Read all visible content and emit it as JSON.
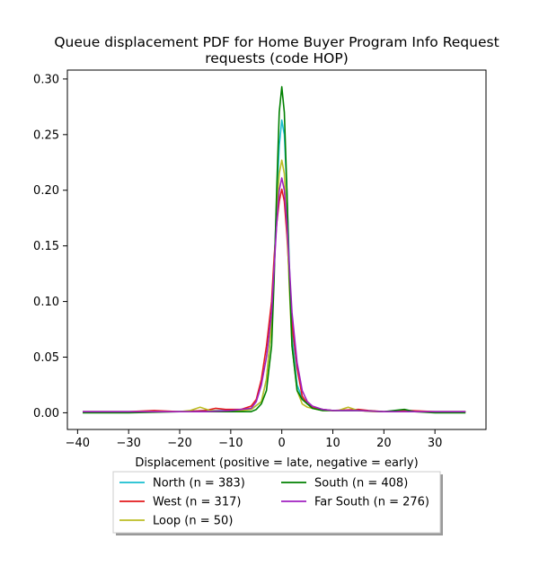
{
  "chart_data": {
    "type": "line",
    "title_lines": [
      "Queue displacement PDF for Home Buyer Program Info Request",
      "requests (code HOP)"
    ],
    "xlabel": "Displacement (positive = late, negative = early)",
    "ylabel": "",
    "xlim": [
      -42,
      40
    ],
    "ylim": [
      -0.015,
      0.308
    ],
    "xticks": [
      -40,
      -30,
      -20,
      -10,
      0,
      10,
      20,
      30
    ],
    "yticks": [
      0.0,
      0.05,
      0.1,
      0.15,
      0.2,
      0.25,
      0.3
    ],
    "ytick_labels": [
      "0.00",
      "0.05",
      "0.10",
      "0.15",
      "0.20",
      "0.25",
      "0.30"
    ],
    "grid": false,
    "legend_position": "below-center",
    "series": [
      {
        "name": "North (n = 383)",
        "color": "#17becf",
        "points": [
          [
            -39,
            0.001
          ],
          [
            -30,
            0.001
          ],
          [
            -20,
            0.001
          ],
          [
            -15,
            0.002
          ],
          [
            -10,
            0.002
          ],
          [
            -6,
            0.003
          ],
          [
            -4,
            0.01
          ],
          [
            -3,
            0.03
          ],
          [
            -2,
            0.08
          ],
          [
            -1.5,
            0.13
          ],
          [
            -1,
            0.19
          ],
          [
            -0.5,
            0.24
          ],
          [
            0,
            0.263
          ],
          [
            0.5,
            0.25
          ],
          [
            1,
            0.2
          ],
          [
            1.5,
            0.13
          ],
          [
            2,
            0.07
          ],
          [
            3,
            0.025
          ],
          [
            4,
            0.013
          ],
          [
            5,
            0.008
          ],
          [
            6,
            0.005
          ],
          [
            8,
            0.003
          ],
          [
            10,
            0.002
          ],
          [
            15,
            0.002
          ],
          [
            20,
            0.001
          ],
          [
            25,
            0.001
          ],
          [
            30,
            0.001
          ],
          [
            36,
            0.001
          ]
        ]
      },
      {
        "name": "West (n = 317)",
        "color": "#e31a1c",
        "points": [
          [
            -39,
            0.001
          ],
          [
            -30,
            0.001
          ],
          [
            -25,
            0.002
          ],
          [
            -20,
            0.001
          ],
          [
            -15,
            0.002
          ],
          [
            -13,
            0.004
          ],
          [
            -11,
            0.003
          ],
          [
            -8,
            0.003
          ],
          [
            -6,
            0.006
          ],
          [
            -5,
            0.012
          ],
          [
            -4,
            0.03
          ],
          [
            -3,
            0.06
          ],
          [
            -2,
            0.1
          ],
          [
            -1.5,
            0.14
          ],
          [
            -1,
            0.17
          ],
          [
            -0.5,
            0.19
          ],
          [
            0,
            0.201
          ],
          [
            0.5,
            0.19
          ],
          [
            1,
            0.16
          ],
          [
            1.5,
            0.12
          ],
          [
            2,
            0.08
          ],
          [
            3,
            0.04
          ],
          [
            4,
            0.015
          ],
          [
            5,
            0.008
          ],
          [
            6,
            0.005
          ],
          [
            8,
            0.003
          ],
          [
            10,
            0.002
          ],
          [
            15,
            0.003
          ],
          [
            17,
            0.002
          ],
          [
            20,
            0.001
          ],
          [
            25,
            0.002
          ],
          [
            30,
            0.001
          ],
          [
            36,
            0.001
          ]
        ]
      },
      {
        "name": "Loop (n = 50)",
        "color": "#bcbd22",
        "points": [
          [
            -39,
            0.001
          ],
          [
            -30,
            0.001
          ],
          [
            -20,
            0.001
          ],
          [
            -18,
            0.002
          ],
          [
            -16,
            0.005
          ],
          [
            -14,
            0.002
          ],
          [
            -10,
            0.001
          ],
          [
            -6,
            0.003
          ],
          [
            -4,
            0.01
          ],
          [
            -3,
            0.03
          ],
          [
            -2,
            0.08
          ],
          [
            -1.5,
            0.13
          ],
          [
            -1,
            0.18
          ],
          [
            -0.5,
            0.215
          ],
          [
            0,
            0.227
          ],
          [
            0.5,
            0.215
          ],
          [
            1,
            0.17
          ],
          [
            1.5,
            0.11
          ],
          [
            2,
            0.06
          ],
          [
            3,
            0.02
          ],
          [
            4,
            0.008
          ],
          [
            5,
            0.005
          ],
          [
            8,
            0.002
          ],
          [
            11,
            0.002
          ],
          [
            13,
            0.005
          ],
          [
            15,
            0.002
          ],
          [
            18,
            0.001
          ],
          [
            25,
            0.001
          ],
          [
            30,
            0.001
          ],
          [
            36,
            0.001
          ]
        ]
      },
      {
        "name": "South (n = 408)",
        "color": "#008000",
        "points": [
          [
            -39,
            0.0
          ],
          [
            -30,
            0.0
          ],
          [
            -20,
            0.001
          ],
          [
            -15,
            0.001
          ],
          [
            -10,
            0.001
          ],
          [
            -6,
            0.001
          ],
          [
            -5,
            0.003
          ],
          [
            -4,
            0.008
          ],
          [
            -3,
            0.02
          ],
          [
            -2,
            0.06
          ],
          [
            -1.5,
            0.12
          ],
          [
            -1,
            0.2
          ],
          [
            -0.5,
            0.27
          ],
          [
            0,
            0.293
          ],
          [
            0.5,
            0.27
          ],
          [
            1,
            0.2
          ],
          [
            1.5,
            0.12
          ],
          [
            2,
            0.06
          ],
          [
            3,
            0.02
          ],
          [
            4,
            0.012
          ],
          [
            5,
            0.008
          ],
          [
            6,
            0.004
          ],
          [
            8,
            0.002
          ],
          [
            10,
            0.002
          ],
          [
            15,
            0.002
          ],
          [
            20,
            0.001
          ],
          [
            22,
            0.002
          ],
          [
            24,
            0.003
          ],
          [
            26,
            0.001
          ],
          [
            30,
            0.0
          ],
          [
            36,
            0.0
          ]
        ]
      },
      {
        "name": "Far South (n = 276)",
        "color": "#a020c0",
        "points": [
          [
            -39,
            0.001
          ],
          [
            -30,
            0.001
          ],
          [
            -20,
            0.001
          ],
          [
            -15,
            0.001
          ],
          [
            -10,
            0.002
          ],
          [
            -6,
            0.004
          ],
          [
            -5,
            0.01
          ],
          [
            -4,
            0.025
          ],
          [
            -3,
            0.05
          ],
          [
            -2,
            0.09
          ],
          [
            -1.5,
            0.13
          ],
          [
            -1,
            0.17
          ],
          [
            -0.5,
            0.2
          ],
          [
            0,
            0.211
          ],
          [
            0.5,
            0.2
          ],
          [
            1,
            0.17
          ],
          [
            1.5,
            0.13
          ],
          [
            2,
            0.09
          ],
          [
            3,
            0.045
          ],
          [
            4,
            0.02
          ],
          [
            5,
            0.01
          ],
          [
            6,
            0.006
          ],
          [
            8,
            0.003
          ],
          [
            10,
            0.002
          ],
          [
            15,
            0.002
          ],
          [
            20,
            0.001
          ],
          [
            25,
            0.001
          ],
          [
            30,
            0.001
          ],
          [
            36,
            0.001
          ]
        ]
      }
    ]
  }
}
